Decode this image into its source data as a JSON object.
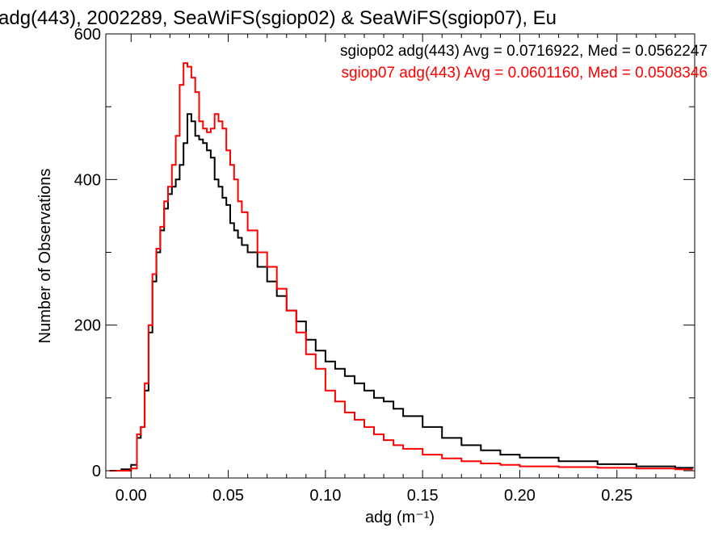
{
  "chart_data": {
    "type": "line",
    "title": "adg(443), 2002289, SeaWiFS(sgiop02) & SeaWiFS(sgiop07), Eu",
    "xlabel": "adg (m⁻¹)",
    "ylabel": "Number of Observations",
    "xlim": [
      -0.013,
      0.29
    ],
    "ylim": [
      -10,
      600
    ],
    "x_ticks": [
      0.0,
      0.05,
      0.1,
      0.15,
      0.2,
      0.25
    ],
    "x_tick_labels": [
      "0.00",
      "0.05",
      "0.10",
      "0.15",
      "0.20",
      "0.25"
    ],
    "y_ticks": [
      0,
      200,
      400,
      600
    ],
    "y_tick_labels": [
      "0",
      "200",
      "400",
      "600"
    ],
    "grid": false,
    "style": "histogram-step",
    "legend": [
      {
        "text": "sgiop02 adg(443) Avg = 0.0716922, Med = 0.0562247",
        "color": "#000000"
      },
      {
        "text": "sgiop07 adg(443) Avg = 0.0601160, Med = 0.0508346",
        "color": "#ff0000"
      }
    ],
    "legend_position": "top-right",
    "series": [
      {
        "name": "sgiop02",
        "color": "#000000",
        "x": [
          -0.011,
          -0.005,
          0.0,
          0.003,
          0.005,
          0.007,
          0.009,
          0.011,
          0.013,
          0.015,
          0.017,
          0.019,
          0.021,
          0.023,
          0.025,
          0.027,
          0.029,
          0.031,
          0.033,
          0.035,
          0.037,
          0.039,
          0.041,
          0.043,
          0.045,
          0.047,
          0.049,
          0.051,
          0.053,
          0.055,
          0.057,
          0.06,
          0.065,
          0.07,
          0.075,
          0.08,
          0.085,
          0.09,
          0.095,
          0.1,
          0.105,
          0.11,
          0.115,
          0.12,
          0.125,
          0.13,
          0.135,
          0.14,
          0.15,
          0.16,
          0.17,
          0.18,
          0.19,
          0.2,
          0.22,
          0.24,
          0.26,
          0.28,
          0.289
        ],
        "y": [
          0,
          2,
          8,
          45,
          60,
          110,
          190,
          260,
          300,
          330,
          360,
          380,
          390,
          400,
          420,
          450,
          490,
          480,
          460,
          455,
          450,
          440,
          430,
          400,
          390,
          375,
          365,
          340,
          330,
          320,
          310,
          300,
          280,
          260,
          240,
          220,
          205,
          180,
          165,
          150,
          140,
          130,
          120,
          110,
          100,
          95,
          85,
          75,
          60,
          45,
          35,
          28,
          22,
          18,
          13,
          9,
          6,
          4,
          3
        ]
      },
      {
        "name": "sgiop07",
        "color": "#ff0000",
        "x": [
          -0.011,
          -0.005,
          0.0,
          0.003,
          0.005,
          0.007,
          0.009,
          0.011,
          0.013,
          0.015,
          0.017,
          0.019,
          0.021,
          0.023,
          0.025,
          0.027,
          0.029,
          0.031,
          0.033,
          0.035,
          0.037,
          0.039,
          0.041,
          0.043,
          0.045,
          0.047,
          0.049,
          0.051,
          0.053,
          0.055,
          0.057,
          0.06,
          0.065,
          0.07,
          0.075,
          0.08,
          0.085,
          0.09,
          0.095,
          0.1,
          0.105,
          0.11,
          0.115,
          0.12,
          0.125,
          0.13,
          0.135,
          0.14,
          0.15,
          0.16,
          0.17,
          0.18,
          0.19,
          0.2,
          0.22,
          0.24,
          0.26,
          0.28,
          0.289
        ],
        "y": [
          0,
          0,
          3,
          50,
          60,
          120,
          200,
          270,
          305,
          335,
          370,
          390,
          420,
          460,
          530,
          560,
          555,
          540,
          520,
          480,
          470,
          465,
          470,
          490,
          480,
          470,
          440,
          420,
          400,
          370,
          355,
          330,
          300,
          280,
          250,
          220,
          190,
          160,
          140,
          110,
          95,
          80,
          70,
          60,
          50,
          42,
          35,
          30,
          22,
          17,
          13,
          10,
          8,
          6,
          5,
          4,
          3,
          2,
          2
        ]
      }
    ]
  }
}
